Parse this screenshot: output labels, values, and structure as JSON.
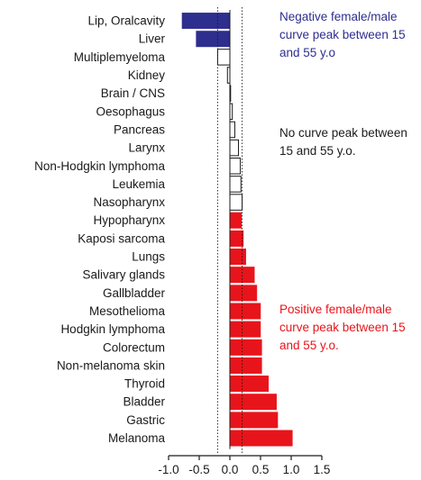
{
  "chart_data": {
    "type": "bar",
    "orientation": "horizontal",
    "categories": [
      "Lip, Oralcavity",
      "Liver",
      "Multiplemyeloma",
      "Kidney",
      "Brain / CNS",
      "Oesophagus",
      "Pancreas",
      "Larynx",
      "Non-Hodgkin lymphoma",
      "Leukemia",
      "Nasopharynx",
      "Hypopharynx",
      "Kaposi sarcoma",
      "Lungs",
      "Salivary glands",
      "Gallbladder",
      "Mesothelioma",
      "Hodgkin lymphoma",
      "Colorectum",
      "Non-melanoma skin",
      "Thyroid",
      "Bladder",
      "Gastric",
      "Melanoma"
    ],
    "values": [
      -0.78,
      -0.55,
      -0.2,
      -0.04,
      0.0,
      0.04,
      0.08,
      0.14,
      0.17,
      0.18,
      0.2,
      0.19,
      0.22,
      0.26,
      0.4,
      0.44,
      0.5,
      0.5,
      0.52,
      0.52,
      0.63,
      0.76,
      0.78,
      1.02
    ],
    "groups": [
      "negative",
      "negative",
      "none",
      "none",
      "none",
      "none",
      "none",
      "none",
      "none",
      "none",
      "none",
      "positive",
      "positive",
      "positive",
      "positive",
      "positive",
      "positive",
      "positive",
      "positive",
      "positive",
      "positive",
      "positive",
      "positive",
      "positive"
    ],
    "xlim": [
      -1.0,
      1.5
    ],
    "xticks": [
      "-1.0",
      "-0.5",
      "0.0",
      "0.5",
      "1.0",
      "1.5"
    ],
    "xtick_values": [
      -1.0,
      -0.5,
      0.0,
      0.5,
      1.0,
      1.5
    ],
    "reference_lines": [
      -0.2,
      0.2
    ],
    "title": "",
    "xlabel": "",
    "ylabel": "",
    "grid": false
  },
  "annotations": {
    "negative": "Negative female/male curve peak between 15 and 55 y.o",
    "none": "No curve peak between 15 and 55 y.o.",
    "positive": "Positive female/male curve peak between 15 and 55 y.o."
  },
  "colors": {
    "negative": "#2e2e8f",
    "none": "#ffffff",
    "positive": "#e8141b",
    "stroke": "#1a1a1a",
    "text": "#1a1a1a"
  }
}
